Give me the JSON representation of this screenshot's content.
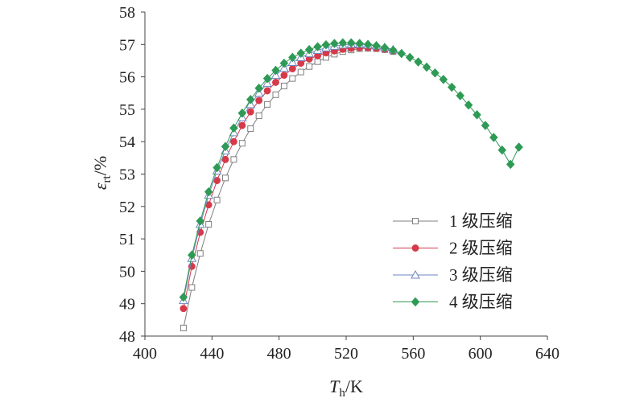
{
  "chart_data": {
    "type": "line",
    "xlabel_main": "T",
    "xlabel_sub": "h",
    "xlabel_unit": "/K",
    "ylabel_main": "ε",
    "ylabel_sub": "rt",
    "ylabel_unit": "/%",
    "xlim": [
      400,
      640
    ],
    "ylim": [
      48,
      58
    ],
    "x_ticks": [
      "400",
      "440",
      "480",
      "520",
      "560",
      "600",
      "640"
    ],
    "y_ticks": [
      "48",
      "49",
      "50",
      "51",
      "52",
      "53",
      "54",
      "55",
      "56",
      "57",
      "58"
    ],
    "legend_position": "bottom-right",
    "series": [
      {
        "name": "1 级压缩",
        "marker": "square-open",
        "color": "#7f7f7f",
        "x": [
          423,
          428,
          433,
          438,
          443,
          448,
          453,
          458,
          463,
          468,
          473,
          478,
          483,
          488,
          493,
          498,
          503,
          508,
          513,
          518,
          523,
          528,
          533,
          538,
          543,
          548
        ],
        "y": [
          48.25,
          49.5,
          50.55,
          51.45,
          52.2,
          52.88,
          53.45,
          53.95,
          54.4,
          54.8,
          55.15,
          55.45,
          55.72,
          55.95,
          56.15,
          56.32,
          56.47,
          56.6,
          56.7,
          56.78,
          56.83,
          56.87,
          56.88,
          56.87,
          56.84,
          56.78
        ]
      },
      {
        "name": "2 级压缩",
        "marker": "circle-filled",
        "color": "#d63a4a",
        "x": [
          423,
          428,
          433,
          438,
          443,
          448,
          453,
          458,
          463,
          468,
          473,
          478,
          483,
          488,
          493,
          498,
          503,
          508,
          513,
          518,
          523,
          528,
          533,
          538,
          543,
          548
        ],
        "y": [
          48.85,
          50.15,
          51.2,
          52.05,
          52.8,
          53.45,
          54.0,
          54.5,
          54.92,
          55.27,
          55.57,
          55.83,
          56.05,
          56.25,
          56.42,
          56.55,
          56.65,
          56.74,
          56.8,
          56.85,
          56.88,
          56.9,
          56.9,
          56.88,
          56.85,
          56.8
        ]
      },
      {
        "name": "3 级压缩",
        "marker": "triangle-open",
        "color": "#6c86c0",
        "x": [
          423,
          428,
          433,
          438,
          443,
          448,
          453,
          458,
          463,
          468,
          473,
          478,
          483,
          488,
          493,
          498,
          503,
          508,
          513,
          518,
          523,
          528,
          533,
          538,
          543,
          548
        ],
        "y": [
          49.1,
          50.4,
          51.45,
          52.35,
          53.1,
          53.72,
          54.28,
          54.75,
          55.15,
          55.5,
          55.8,
          56.05,
          56.27,
          56.45,
          56.6,
          56.72,
          56.82,
          56.9,
          56.95,
          56.99,
          57.01,
          57.01,
          56.99,
          56.96,
          56.91,
          56.84
        ]
      },
      {
        "name": "4 级压缩",
        "marker": "diamond-filled",
        "color": "#2e9a55",
        "x": [
          423,
          428,
          433,
          438,
          443,
          448,
          453,
          458,
          463,
          468,
          473,
          478,
          483,
          488,
          493,
          498,
          503,
          508,
          513,
          518,
          523,
          528,
          533,
          538,
          543,
          548,
          553,
          558,
          563,
          568,
          573,
          578,
          583,
          588,
          593,
          598,
          603,
          608,
          613,
          618,
          623
        ],
        "y": [
          49.2,
          50.5,
          51.55,
          52.45,
          53.2,
          53.85,
          54.42,
          54.88,
          55.3,
          55.65,
          55.95,
          56.2,
          56.42,
          56.6,
          56.73,
          56.84,
          56.93,
          56.99,
          57.03,
          57.05,
          57.05,
          57.03,
          57.0,
          56.96,
          56.9,
          56.82,
          56.72,
          56.6,
          56.46,
          56.3,
          56.12,
          55.92,
          55.68,
          55.42,
          55.13,
          54.83,
          54.5,
          54.13,
          53.74,
          53.3,
          53.83
        ]
      }
    ]
  }
}
